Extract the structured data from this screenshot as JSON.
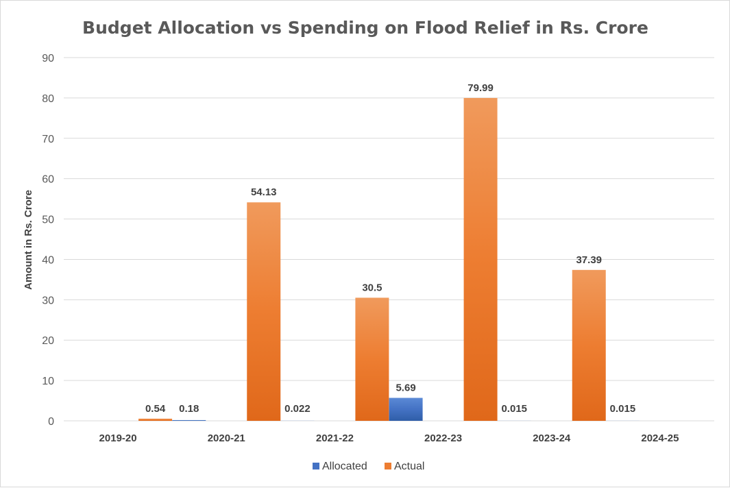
{
  "chart_data": {
    "type": "bar",
    "title": "Budget Allocation vs Spending on Flood Relief in Rs. Crore",
    "xlabel": "",
    "ylabel": "Amount in Rs. Crore",
    "ylim": [
      0,
      90
    ],
    "yticks": [
      0,
      10,
      20,
      30,
      40,
      50,
      60,
      70,
      80,
      90
    ],
    "grid": true,
    "legend": "bottom",
    "categories": [
      "2019-20",
      "2020-21",
      "2021-22",
      "2022-23",
      "2023-24",
      "2024-25"
    ],
    "series": [
      {
        "name": "Allocated",
        "color": "#4472c4",
        "values": [
          null,
          0.18,
          0.022,
          5.69,
          0.015,
          0.015
        ],
        "labels": [
          "",
          "0.18",
          "0.022",
          "5.69",
          "0.015",
          "0.015"
        ]
      },
      {
        "name": "Actual",
        "color": "#ed7d31",
        "values": [
          0.54,
          54.13,
          30.5,
          79.99,
          37.39,
          null
        ],
        "labels": [
          "0.54",
          "54.13",
          "30.5",
          "79.99",
          "37.39",
          ""
        ]
      }
    ]
  }
}
